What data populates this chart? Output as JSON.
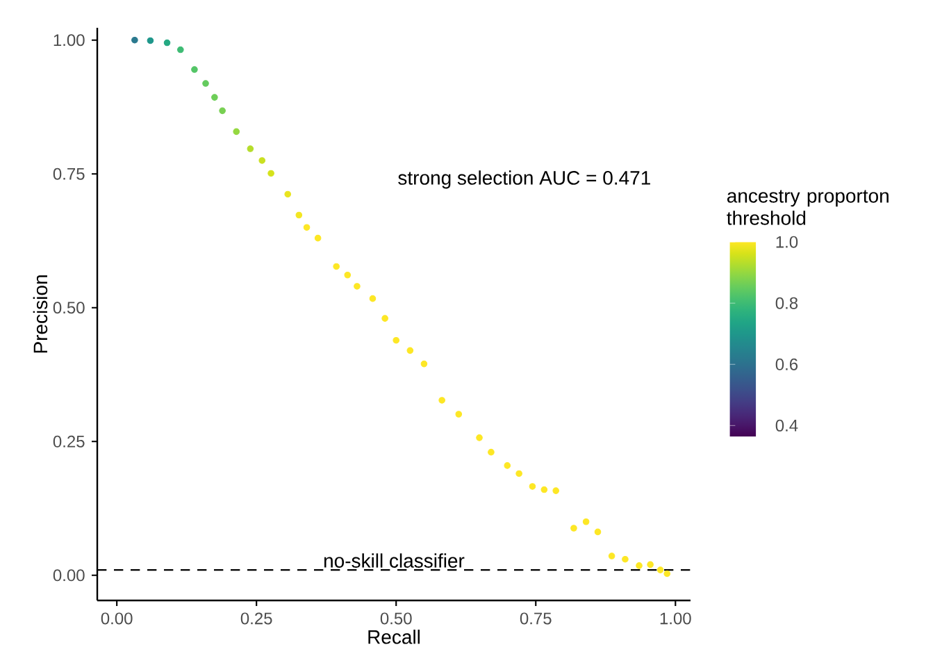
{
  "chart_data": {
    "type": "scatter",
    "marker": "circle",
    "xlabel": "Recall",
    "ylabel": "Precision",
    "clabel": "ancestry proporton threshold",
    "annotations": [
      "strong selection AUC = 0.471"
    ],
    "x": [
      0.032,
      0.06,
      0.09,
      0.114,
      0.139,
      0.159,
      0.175,
      0.189,
      0.214,
      0.239,
      0.26,
      0.276,
      0.306,
      0.326,
      0.34,
      0.36,
      0.393,
      0.413,
      0.43,
      0.458,
      0.48,
      0.5,
      0.525,
      0.55,
      0.582,
      0.612,
      0.649,
      0.67,
      0.699,
      0.72,
      0.744,
      0.765,
      0.786,
      0.818,
      0.84,
      0.861,
      0.886,
      0.91,
      0.935,
      0.955,
      0.973,
      0.985
    ],
    "series": [
      {
        "values": [
          1.0,
          0.999,
          0.995,
          0.982,
          0.945,
          0.919,
          0.893,
          0.868,
          0.829,
          0.797,
          0.775,
          0.751,
          0.712,
          0.673,
          0.65,
          0.63,
          0.577,
          0.561,
          0.54,
          0.517,
          0.48,
          0.439,
          0.42,
          0.395,
          0.327,
          0.301,
          0.257,
          0.23,
          0.205,
          0.19,
          0.166,
          0.16,
          0.158,
          0.088,
          0.1,
          0.081,
          0.036,
          0.03,
          0.018,
          0.02,
          0.01,
          0.003
        ],
        "cvalues": [
          0.62,
          0.7,
          0.75,
          0.8,
          0.83,
          0.85,
          0.86,
          0.87,
          0.9,
          0.93,
          0.95,
          0.96,
          0.98,
          0.99,
          1.0,
          1.0,
          1.0,
          1.0,
          1.0,
          1.0,
          1.0,
          1.0,
          1.0,
          1.0,
          1.0,
          1.0,
          1.0,
          1.0,
          1.0,
          1.0,
          1.0,
          1.0,
          1.0,
          1.0,
          1.0,
          1.0,
          1.0,
          1.0,
          1.0,
          1.0,
          1.0,
          1.0
        ]
      }
    ],
    "xlim": [
      -0.035,
      1.027
    ],
    "ylim": [
      -0.047,
      1.023
    ],
    "xticks": [
      {
        "value": 0,
        "label": "0.00"
      },
      {
        "value": 0.25,
        "label": "0.25"
      },
      {
        "value": 0.5,
        "label": "0.50"
      },
      {
        "value": 0.75,
        "label": "0.75"
      },
      {
        "value": 1,
        "label": "1.00"
      }
    ],
    "yticks": [
      {
        "value": 0,
        "label": "0.00"
      },
      {
        "value": 0.25,
        "label": "0.25"
      },
      {
        "value": 0.5,
        "label": "0.50"
      },
      {
        "value": 0.75,
        "label": "0.75"
      },
      {
        "value": 1,
        "label": "1.00"
      }
    ],
    "clim": [
      0.364,
      1.0
    ],
    "cticks": [
      {
        "value": 0.4,
        "label": "0.4"
      },
      {
        "value": 0.6,
        "label": "0.6"
      },
      {
        "value": 0.8,
        "label": "0.8"
      },
      {
        "value": 1.0,
        "label": "1.0"
      }
    ],
    "ref_lines": [
      {
        "axis": "y",
        "value": 0.01,
        "label": "no-skill classifier",
        "line_style": "dashed",
        "color": "#000000"
      }
    ]
  }
}
